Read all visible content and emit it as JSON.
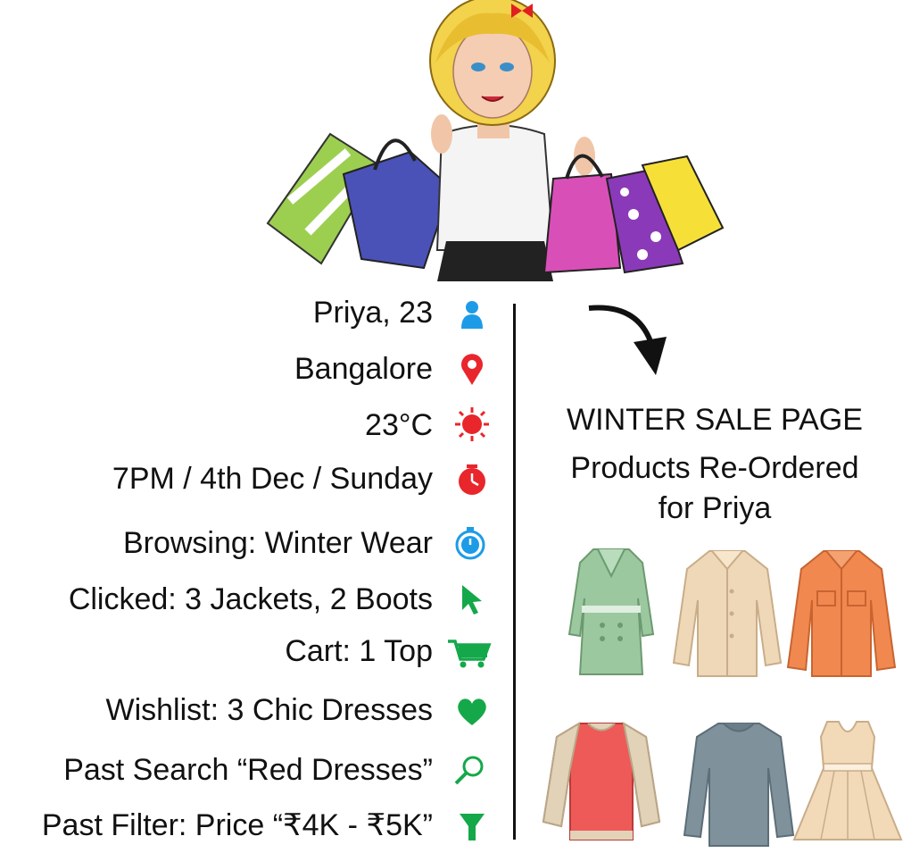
{
  "customer_attributes": [
    {
      "label": "Priya, 23",
      "icon": "person-icon",
      "color": "#1e9be6"
    },
    {
      "label": "Bangalore",
      "icon": "location-pin-icon",
      "color": "#e8262b"
    },
    {
      "label": "23°C",
      "icon": "sun-icon",
      "color": "#e8262b"
    },
    {
      "label": "7PM / 4th Dec / Sunday",
      "icon": "clock-icon",
      "color": "#e8262b"
    },
    {
      "label": "Browsing: Winter Wear",
      "icon": "stopwatch-icon",
      "color": "#1e9be6"
    },
    {
      "label": "Clicked: 3 Jackets, 2 Boots",
      "icon": "cursor-icon",
      "color": "#14a84a"
    },
    {
      "label": "Cart: 1 Top",
      "icon": "shopping-cart-icon",
      "color": "#14a84a"
    },
    {
      "label": "Wishlist: 3 Chic Dresses",
      "icon": "heart-icon",
      "color": "#14a84a"
    },
    {
      "label": "Past Search  “Red Dresses”",
      "icon": "magnifier-icon",
      "color": "#14a84a"
    },
    {
      "label": "Past Filter: Price “₹4K - ₹5K”",
      "icon": "filter-icon",
      "color": "#14a84a"
    }
  ],
  "result": {
    "heading": "WINTER SALE PAGE",
    "subheading_line1": "Products Re-Ordered",
    "subheading_line2": "for Priya"
  },
  "products": [
    {
      "icon": "trench-coat-icon",
      "color": "#9cc8a0"
    },
    {
      "icon": "cream-shirt-icon",
      "color": "#efd8b8"
    },
    {
      "icon": "orange-jacket-icon",
      "color": "#f08850"
    },
    {
      "icon": "red-sweater-icon",
      "color": "#ee5a58"
    },
    {
      "icon": "grey-top-icon",
      "color": "#7f929c"
    },
    {
      "icon": "beige-dress-icon",
      "color": "#f2d9b8"
    }
  ]
}
